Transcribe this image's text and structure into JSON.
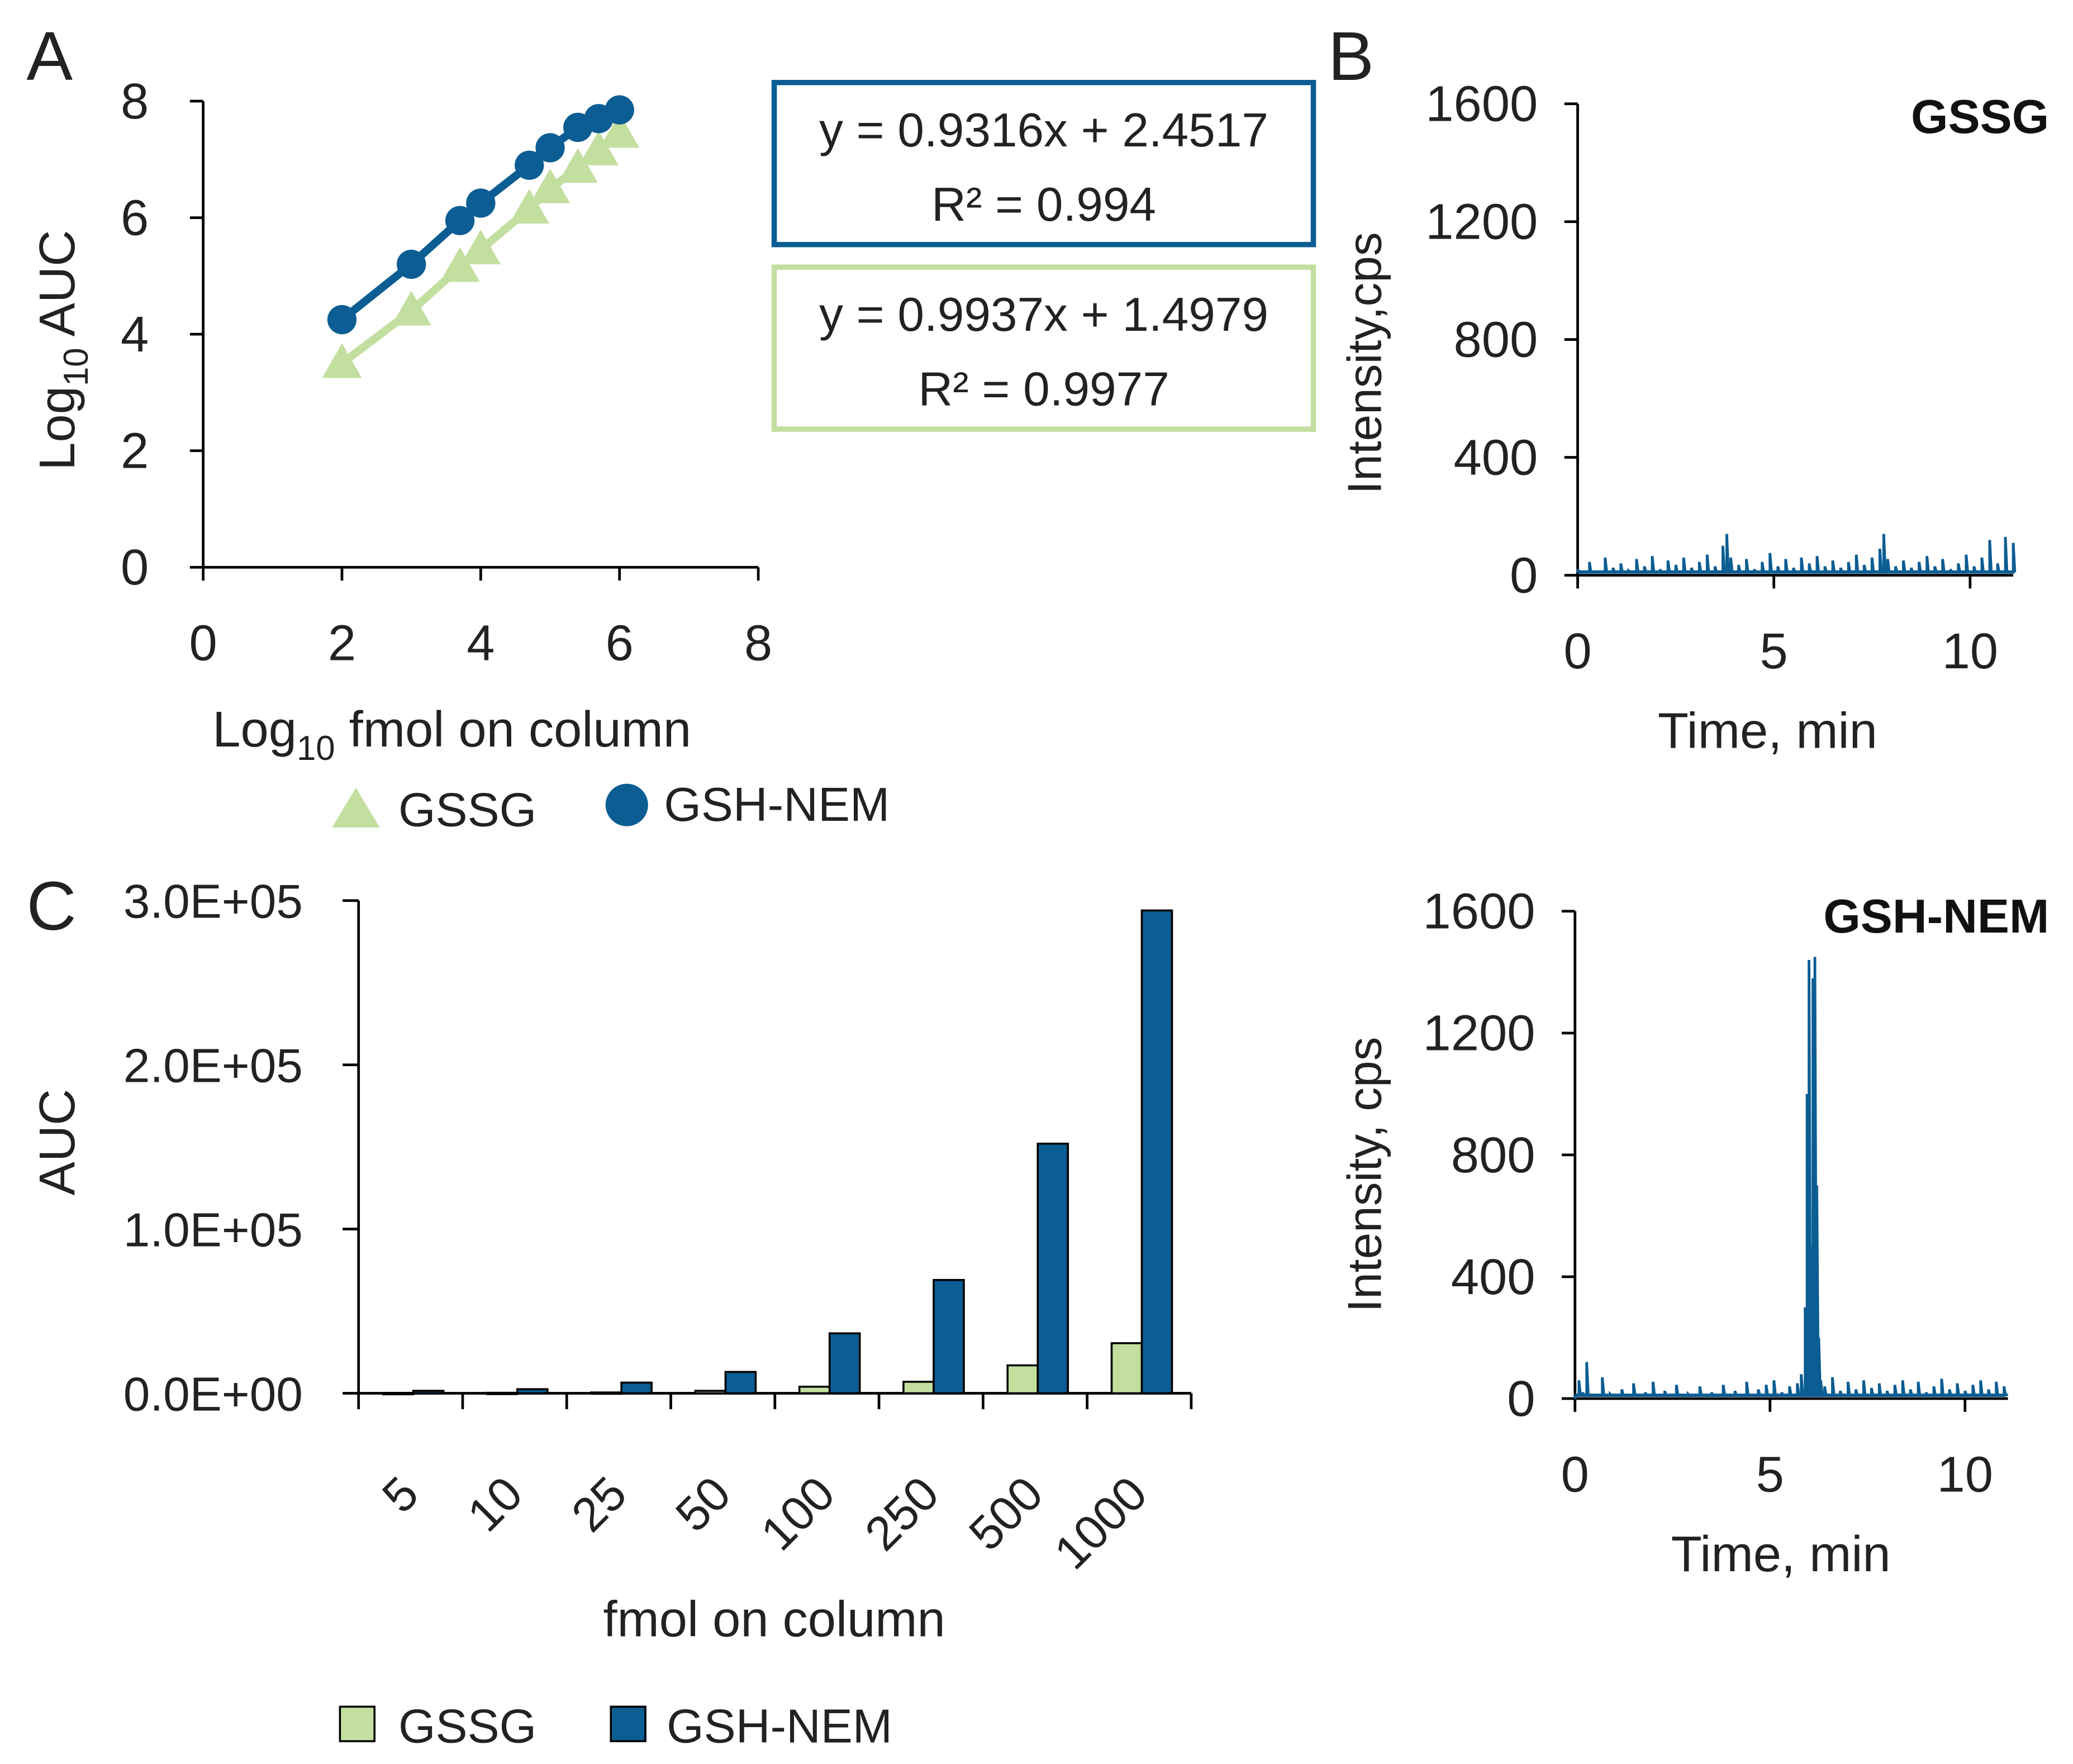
{
  "panel_labels": [
    "A",
    "B",
    "C"
  ],
  "colors": {
    "gssg": "#c3df9f",
    "gssg_stroke": "#b4d48f",
    "gsh": "#0b5d93",
    "axis": "#000000",
    "text": "#222222"
  },
  "chart_data": [
    {
      "id": "A",
      "type": "scatter",
      "xlabel_main": "Log",
      "xlabel_sub": "10",
      "xlabel_rest": " fmol on column",
      "ylabel_main": "Log",
      "ylabel_sub": "10",
      "ylabel_rest": " AUC",
      "xlim": [
        0,
        8
      ],
      "ylim": [
        0,
        8
      ],
      "xticks": [
        "0",
        "2",
        "4",
        "6",
        "8"
      ],
      "yticks": [
        "0",
        "2",
        "4",
        "6",
        "8"
      ],
      "series": [
        {
          "name": "GSSG",
          "marker": "triangle",
          "x": [
            2.0,
            3.0,
            3.7,
            4.0,
            4.7,
            5.0,
            5.4,
            5.7,
            6.0
          ],
          "y": [
            3.5,
            4.4,
            5.15,
            5.45,
            6.15,
            6.5,
            6.85,
            7.15,
            7.45
          ]
        },
        {
          "name": "GSH-NEM",
          "marker": "circle",
          "x": [
            2.0,
            3.0,
            3.7,
            4.0,
            4.7,
            5.0,
            5.4,
            5.7,
            6.0
          ],
          "y": [
            4.25,
            5.2,
            5.95,
            6.25,
            6.9,
            7.2,
            7.55,
            7.7,
            7.85
          ]
        }
      ],
      "legend": [
        "GSSG",
        "GSH-NEM"
      ],
      "equations": [
        {
          "series": "GSH-NEM",
          "line1": "y = 0.9316x + 2.4517",
          "line2": "R² = 0.994"
        },
        {
          "series": "GSSG",
          "line1": "y = 0.9937x + 1.4979",
          "line2": "R² = 0.9977"
        }
      ]
    },
    {
      "id": "B-top",
      "type": "line",
      "title": "GSSG",
      "xlabel": "Time, min",
      "ylabel": "Intensity,cps",
      "xlim": [
        0,
        11.1
      ],
      "ylim": [
        0,
        1600
      ],
      "xticks": [
        "0",
        "5",
        "10"
      ],
      "yticks": [
        "0",
        "400",
        "800",
        "1200",
        "1600"
      ],
      "series": [
        {
          "name": "GSSG trace",
          "x": [
            0.0,
            0.3,
            0.5,
            0.7,
            0.9,
            1.1,
            1.3,
            1.5,
            1.7,
            1.9,
            2.1,
            2.3,
            2.5,
            2.7,
            2.9,
            3.1,
            3.3,
            3.5,
            3.7,
            3.8,
            3.9,
            4.1,
            4.3,
            4.5,
            4.7,
            4.9,
            5.1,
            5.3,
            5.5,
            5.7,
            5.9,
            6.1,
            6.3,
            6.5,
            6.7,
            6.9,
            7.1,
            7.3,
            7.5,
            7.7,
            7.8,
            7.9,
            8.1,
            8.3,
            8.5,
            8.7,
            8.9,
            9.1,
            9.3,
            9.5,
            9.7,
            9.9,
            10.1,
            10.3,
            10.5,
            10.7,
            10.9,
            11.1
          ],
          "y": [
            20,
            45,
            10,
            60,
            25,
            40,
            15,
            55,
            30,
            65,
            20,
            50,
            35,
            60,
            25,
            45,
            70,
            30,
            100,
            140,
            60,
            35,
            55,
            20,
            45,
            75,
            30,
            55,
            25,
            60,
            40,
            65,
            30,
            50,
            25,
            45,
            70,
            35,
            60,
            90,
            140,
            55,
            30,
            50,
            25,
            45,
            65,
            30,
            55,
            20,
            40,
            70,
            30,
            60,
            120,
            40,
            130,
            110
          ]
        }
      ]
    },
    {
      "id": "B-bottom",
      "type": "line",
      "title": "GSH-NEM",
      "xlabel": "Time, min",
      "ylabel": "Intensity, cps",
      "xlim": [
        0,
        11.1
      ],
      "ylim": [
        0,
        1600
      ],
      "xticks": [
        "0",
        "5",
        "10"
      ],
      "yticks": [
        "0",
        "400",
        "800",
        "1200",
        "1600"
      ],
      "series": [
        {
          "name": "GSH-NEM trace",
          "x": [
            0.0,
            0.1,
            0.2,
            0.3,
            0.5,
            0.7,
            0.9,
            1.2,
            1.5,
            1.8,
            2.0,
            2.1,
            2.3,
            2.6,
            2.9,
            3.2,
            3.5,
            3.8,
            4.1,
            4.4,
            4.7,
            4.9,
            5.1,
            5.3,
            5.5,
            5.7,
            5.8,
            5.9,
            5.95,
            6.0,
            6.05,
            6.1,
            6.15,
            6.2,
            6.25,
            6.3,
            6.4,
            6.6,
            6.8,
            7.0,
            7.2,
            7.4,
            7.6,
            7.8,
            8.0,
            8.2,
            8.4,
            8.6,
            8.8,
            9.0,
            9.2,
            9.4,
            9.6,
            9.8,
            10.0,
            10.2,
            10.4,
            10.6,
            10.8,
            11.0
          ],
          "y": [
            0,
            60,
            20,
            120,
            10,
            70,
            15,
            30,
            50,
            20,
            55,
            10,
            25,
            45,
            15,
            40,
            20,
            45,
            25,
            55,
            30,
            45,
            60,
            20,
            40,
            50,
            80,
            300,
            1000,
            1440,
            500,
            1380,
            1450,
            700,
            200,
            60,
            40,
            70,
            25,
            55,
            30,
            60,
            35,
            50,
            25,
            45,
            60,
            30,
            55,
            20,
            40,
            65,
            30,
            50,
            25,
            45,
            60,
            30,
            55,
            40
          ]
        }
      ]
    },
    {
      "id": "C",
      "type": "bar",
      "xlabel": "fmol on column",
      "ylabel": "AUC",
      "ylim": [
        0,
        300000
      ],
      "yticks": [
        "0.0E+00",
        "1.0E+05",
        "2.0E+05",
        "3.0E+05"
      ],
      "categories": [
        "5",
        "10",
        "25",
        "50",
        "100",
        "250",
        "500",
        "1000"
      ],
      "series": [
        {
          "name": "GSSG",
          "values": [
            200,
            300,
            500,
            1500,
            4000,
            7000,
            17000,
            30500
          ]
        },
        {
          "name": "GSH-NEM",
          "values": [
            1500,
            2500,
            6500,
            13000,
            36500,
            69000,
            152000,
            294000
          ]
        }
      ],
      "legend": [
        "GSSG",
        "GSH-NEM"
      ]
    }
  ]
}
